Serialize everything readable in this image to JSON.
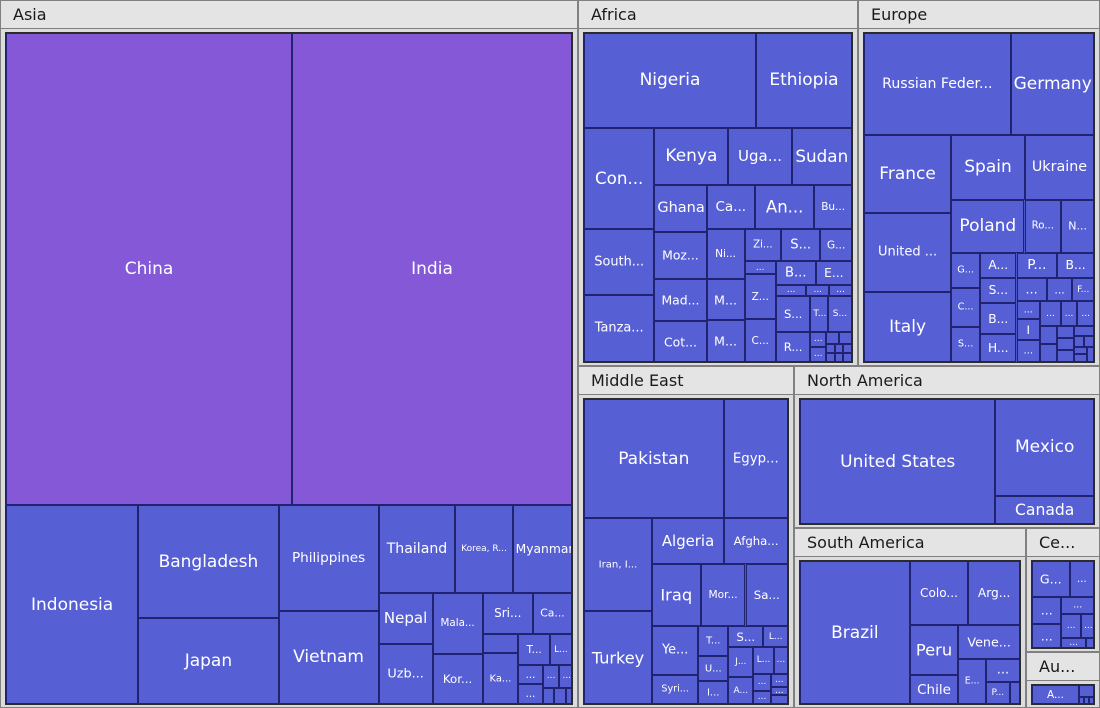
{
  "chart_data": {
    "type": "treemap",
    "colors": {
      "largest": "#8458d6",
      "default": "#5660d4",
      "border": "#1f2370",
      "header": "#e4e4e4"
    },
    "regions": [
      {
        "name": "Asia",
        "children": [
          {
            "label": "China",
            "value": 1410
          },
          {
            "label": "India",
            "value": 1380
          },
          {
            "label": "Indonesia",
            "value": 274
          },
          {
            "label": "Bangladesh",
            "value": 165
          },
          {
            "label": "Japan",
            "value": 126
          },
          {
            "label": "Philippines",
            "value": 110
          },
          {
            "label": "Vietnam",
            "value": 97
          },
          {
            "label": "Thailand",
            "value": 70
          },
          {
            "label": "Korea, R...",
            "value": 52
          },
          {
            "label": "Myanmar",
            "value": 54
          },
          {
            "label": "Nepal",
            "value": 29
          },
          {
            "label": "Uzb...",
            "value": 34
          },
          {
            "label": "Mala...",
            "value": 32
          },
          {
            "label": "Kor...",
            "value": 26
          },
          {
            "label": "Sri...",
            "value": 22
          },
          {
            "label": "Ca...",
            "value": 17
          },
          {
            "label": "",
            "value": 7
          },
          {
            "label": "Ka...",
            "value": 19
          },
          {
            "label": "T...",
            "value": 10
          },
          {
            "label": "L...",
            "value": 7
          },
          {
            "label": "...",
            "value": 5
          },
          {
            "label": "...",
            "value": 5
          },
          {
            "label": "...",
            "value": 4
          },
          {
            "label": "...",
            "value": 3
          },
          {
            "label": "",
            "value": 2
          },
          {
            "label": "",
            "value": 2
          },
          {
            "label": "",
            "value": 1
          }
        ]
      },
      {
        "name": "Africa",
        "children": [
          {
            "label": "Nigeria",
            "value": 206
          },
          {
            "label": "Ethiopia",
            "value": 115
          },
          {
            "label": "Con...",
            "value": 90
          },
          {
            "label": "South...",
            "value": 59
          },
          {
            "label": "Tanza...",
            "value": 60
          },
          {
            "label": "Kenya",
            "value": 54
          },
          {
            "label": "Uga...",
            "value": 46
          },
          {
            "label": "Sudan",
            "value": 44
          },
          {
            "label": "Ghana",
            "value": 31
          },
          {
            "label": "Moz...",
            "value": 31
          },
          {
            "label": "Mad...",
            "value": 28
          },
          {
            "label": "Cot...",
            "value": 27
          },
          {
            "label": "Ca...",
            "value": 27
          },
          {
            "label": "An...",
            "value": 33
          },
          {
            "label": "Bu...",
            "value": 21
          },
          {
            "label": "Ni...",
            "value": 24
          },
          {
            "label": "M...",
            "value": 20
          },
          {
            "label": "M...",
            "value": 20
          },
          {
            "label": "Zi...",
            "value": 15
          },
          {
            "label": "S...",
            "value": 16
          },
          {
            "label": "G...",
            "value": 13
          },
          {
            "label": "...",
            "value": 5
          },
          {
            "label": "Z...",
            "value": 18
          },
          {
            "label": "C...",
            "value": 17
          },
          {
            "label": "B...",
            "value": 12
          },
          {
            "label": "E...",
            "value": 11
          },
          {
            "label": "...",
            "value": 4
          },
          {
            "label": "...",
            "value": 3
          },
          {
            "label": "...",
            "value": 3
          },
          {
            "label": "S...",
            "value": 16
          },
          {
            "label": "R...",
            "value": 13
          },
          {
            "label": "T...",
            "value": 8
          },
          {
            "label": "S...",
            "value": 11
          },
          {
            "label": "...",
            "value": 3
          },
          {
            "label": "...",
            "value": 3
          },
          {
            "label": "",
            "value": 2
          },
          {
            "label": "",
            "value": 2
          },
          {
            "label": "",
            "value": 1
          },
          {
            "label": "",
            "value": 1
          },
          {
            "label": "",
            "value": 1
          },
          {
            "label": "",
            "value": 1
          },
          {
            "label": "",
            "value": 1
          },
          {
            "label": "",
            "value": 1
          }
        ]
      },
      {
        "name": "Europe",
        "children": [
          {
            "label": "Russian Feder...",
            "value": 146
          },
          {
            "label": "Germany",
            "value": 83
          },
          {
            "label": "France",
            "value": 67
          },
          {
            "label": "United ...",
            "value": 67
          },
          {
            "label": "Italy",
            "value": 60
          },
          {
            "label": "Spain",
            "value": 47
          },
          {
            "label": "Ukraine",
            "value": 44
          },
          {
            "label": "Poland",
            "value": 38
          },
          {
            "label": "Ro...",
            "value": 19
          },
          {
            "label": "N...",
            "value": 17
          },
          {
            "label": "G...",
            "value": 10
          },
          {
            "label": "C...",
            "value": 11
          },
          {
            "label": "S...",
            "value": 10
          },
          {
            "label": "A...",
            "value": 9
          },
          {
            "label": "S...",
            "value": 9
          },
          {
            "label": "B...",
            "value": 11
          },
          {
            "label": "H...",
            "value": 10
          },
          {
            "label": "P...",
            "value": 10
          },
          {
            "label": "B...",
            "value": 9
          },
          {
            "label": "...",
            "value": 7
          },
          {
            "label": "...",
            "value": 6
          },
          {
            "label": "F...",
            "value": 5
          },
          {
            "label": "...",
            "value": 4
          },
          {
            "label": "I",
            "value": 5
          },
          {
            "label": "...",
            "value": 5
          },
          {
            "label": "...",
            "value": 5
          },
          {
            "label": "...",
            "value": 4
          },
          {
            "label": "...",
            "value": 4
          },
          {
            "label": "",
            "value": 3
          },
          {
            "label": "",
            "value": 3
          },
          {
            "label": "",
            "value": 2
          },
          {
            "label": "",
            "value": 2
          },
          {
            "label": "",
            "value": 2
          },
          {
            "label": "",
            "value": 2
          },
          {
            "label": "",
            "value": 1
          },
          {
            "label": "",
            "value": 1
          },
          {
            "label": "",
            "value": 1
          },
          {
            "label": "",
            "value": 1
          },
          {
            "label": "",
            "value": 1
          }
        ]
      },
      {
        "name": "Middle East",
        "children": [
          {
            "label": "Pakistan",
            "value": 221
          },
          {
            "label": "Egyp...",
            "value": 102
          },
          {
            "label": "Iran, I...",
            "value": 84
          },
          {
            "label": "Turkey",
            "value": 84
          },
          {
            "label": "Algeria",
            "value": 44
          },
          {
            "label": "Afgha...",
            "value": 39
          },
          {
            "label": "Iraq",
            "value": 40
          },
          {
            "label": "Mor...",
            "value": 37
          },
          {
            "label": "Sa...",
            "value": 35
          },
          {
            "label": "Ye...",
            "value": 30
          },
          {
            "label": "Syri...",
            "value": 18
          },
          {
            "label": "T...",
            "value": 12
          },
          {
            "label": "U...",
            "value": 10
          },
          {
            "label": "I...",
            "value": 9
          },
          {
            "label": "S...",
            "value": 10
          },
          {
            "label": "L...",
            "value": 7
          },
          {
            "label": "J...",
            "value": 10
          },
          {
            "label": "A...",
            "value": 9
          },
          {
            "label": "L...",
            "value": 7
          },
          {
            "label": "...",
            "value": 5
          },
          {
            "label": "...",
            "value": 4
          },
          {
            "label": "...",
            "value": 3
          },
          {
            "label": "...",
            "value": 3
          },
          {
            "label": "...",
            "value": 2
          },
          {
            "label": "",
            "value": 2
          }
        ]
      },
      {
        "name": "North America",
        "children": [
          {
            "label": "United States",
            "value": 331
          },
          {
            "label": "Mexico",
            "value": 129
          },
          {
            "label": "Canada",
            "value": 38
          }
        ]
      },
      {
        "name": "South America",
        "children": [
          {
            "label": "Brazil",
            "value": 213
          },
          {
            "label": "Colo...",
            "value": 51
          },
          {
            "label": "Arg...",
            "value": 45
          },
          {
            "label": "Peru",
            "value": 33
          },
          {
            "label": "Chile",
            "value": 19
          },
          {
            "label": "Vene...",
            "value": 28
          },
          {
            "label": "E...",
            "value": 17
          },
          {
            "label": "...",
            "value": 11
          },
          {
            "label": "P...",
            "value": 7
          },
          {
            "label": "",
            "value": 3
          }
        ]
      },
      {
        "name": "Ce...",
        "children": [
          {
            "label": "G...",
            "value": 17
          },
          {
            "label": "...",
            "value": 11
          },
          {
            "label": "...",
            "value": 10
          },
          {
            "label": "...",
            "value": 9
          },
          {
            "label": "...",
            "value": 7
          },
          {
            "label": "...",
            "value": 6
          },
          {
            "label": "...",
            "value": 4
          },
          {
            "label": "...",
            "value": 3
          },
          {
            "label": "",
            "value": 1
          }
        ]
      },
      {
        "name": "Au...",
        "children": [
          {
            "label": "A...",
            "value": 25
          },
          {
            "label": "",
            "value": 5
          },
          {
            "label": "",
            "value": 1
          },
          {
            "label": "",
            "value": 1
          },
          {
            "label": "",
            "value": 1
          }
        ]
      }
    ]
  }
}
